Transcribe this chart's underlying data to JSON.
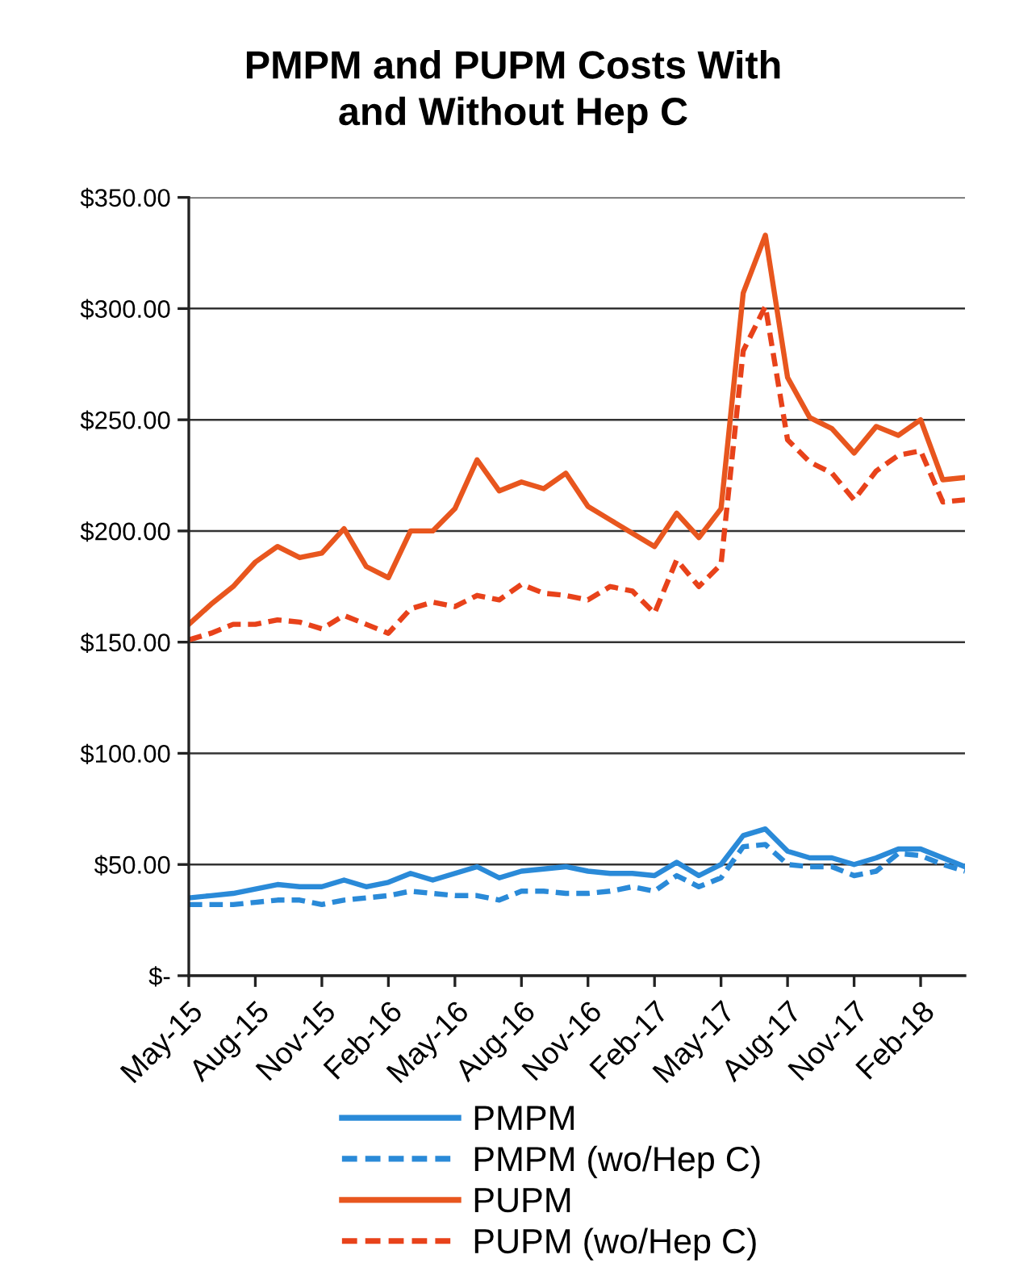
{
  "chart_data": {
    "type": "line",
    "title": "PMPM and PUPM Costs With\nand Without Hep C",
    "x": [
      "2015-05",
      "2015-06",
      "2015-07",
      "2015-08",
      "2015-09",
      "2015-10",
      "2015-11",
      "2015-12",
      "2016-01",
      "2016-02",
      "2016-03",
      "2016-04",
      "2016-05",
      "2016-06",
      "2016-07",
      "2016-08",
      "2016-09",
      "2016-10",
      "2016-11",
      "2016-12",
      "2017-01",
      "2017-02",
      "2017-03",
      "2017-04",
      "2017-05",
      "2017-06",
      "2017-07",
      "2017-08",
      "2017-09",
      "2017-10",
      "2017-11",
      "2017-12",
      "2018-01",
      "2018-02",
      "2018-03",
      "2018-04"
    ],
    "series": [
      {
        "name": "PMPM",
        "color": "#2a8ad8",
        "line_style": "solid",
        "values": [
          35,
          36,
          37,
          39,
          41,
          40,
          40,
          43,
          40,
          42,
          46,
          43,
          46,
          49,
          44,
          47,
          48,
          49,
          47,
          46,
          46,
          45,
          51,
          45,
          50,
          63,
          66,
          56,
          53,
          53,
          50,
          53,
          57,
          57,
          53,
          49
        ]
      },
      {
        "name": "PMPM (wo/Hep C)",
        "color": "#2a8ad8",
        "line_style": "dashed",
        "values": [
          32,
          32,
          32,
          33,
          34,
          34,
          32,
          34,
          35,
          36,
          38,
          37,
          36,
          36,
          34,
          38,
          38,
          37,
          37,
          38,
          40,
          38,
          45,
          40,
          44,
          58,
          59,
          50,
          49,
          49,
          45,
          47,
          55,
          54,
          50,
          47
        ]
      },
      {
        "name": "PUPM",
        "color": "#e8561e",
        "line_style": "solid",
        "values": [
          158,
          167,
          175,
          186,
          193,
          188,
          190,
          201,
          184,
          179,
          200,
          200,
          210,
          232,
          218,
          222,
          219,
          226,
          211,
          205,
          199,
          193,
          208,
          197,
          210,
          307,
          333,
          269,
          251,
          246,
          235,
          247,
          243,
          250,
          223,
          224
        ]
      },
      {
        "name": "PUPM (wo/Hep C)",
        "color": "#e8421a",
        "line_style": "dashed",
        "values": [
          151,
          154,
          158,
          158,
          160,
          159,
          156,
          162,
          158,
          154,
          165,
          168,
          166,
          171,
          169,
          176,
          172,
          171,
          169,
          175,
          173,
          163,
          187,
          175,
          185,
          281,
          301,
          241,
          231,
          226,
          214,
          227,
          234,
          236,
          213,
          214
        ]
      }
    ],
    "xlim": [
      "2015-05",
      "2018-04"
    ],
    "xticks": [
      {
        "value": "2015-05",
        "label": "May-15"
      },
      {
        "value": "2015-08",
        "label": "Aug-15"
      },
      {
        "value": "2015-11",
        "label": "Nov-15"
      },
      {
        "value": "2016-02",
        "label": "Feb-16"
      },
      {
        "value": "2016-05",
        "label": "May-16"
      },
      {
        "value": "2016-08",
        "label": "Aug-16"
      },
      {
        "value": "2016-11",
        "label": "Nov-16"
      },
      {
        "value": "2017-02",
        "label": "Feb-17"
      },
      {
        "value": "2017-05",
        "label": "May-17"
      },
      {
        "value": "2017-08",
        "label": "Aug-17"
      },
      {
        "value": "2017-11",
        "label": "Nov-17"
      },
      {
        "value": "2018-02",
        "label": "Feb-18"
      }
    ],
    "ylim": [
      0,
      350
    ],
    "yticks": [
      {
        "value": 0,
        "label": "$-"
      },
      {
        "value": 50,
        "label": "$50.00"
      },
      {
        "value": 100,
        "label": "$100.00"
      },
      {
        "value": 150,
        "label": "$150.00"
      },
      {
        "value": 200,
        "label": "$200.00"
      },
      {
        "value": 250,
        "label": "$250.00"
      },
      {
        "value": 300,
        "label": "$300.00"
      },
      {
        "value": 350,
        "label": "$350.00"
      }
    ],
    "grid": "y",
    "legend": "bottom"
  }
}
